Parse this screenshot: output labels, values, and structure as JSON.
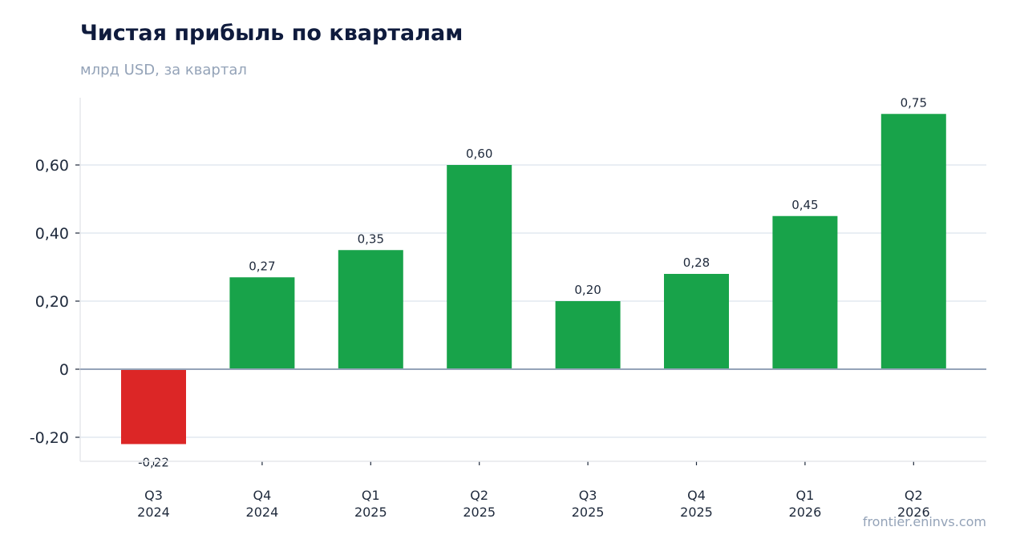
{
  "chart_data": {
    "type": "bar",
    "title": "Чистая прибыль по кварталам",
    "subtitle": "млрд USD, за квартал",
    "xlabel": "",
    "ylabel": "",
    "categories": [
      [
        "Q3",
        "2024"
      ],
      [
        "Q4",
        "2024"
      ],
      [
        "Q1",
        "2025"
      ],
      [
        "Q2",
        "2025"
      ],
      [
        "Q3",
        "2025"
      ],
      [
        "Q4",
        "2025"
      ],
      [
        "Q1",
        "2026"
      ],
      [
        "Q2",
        "2026"
      ]
    ],
    "values": [
      -0.22,
      0.27,
      0.35,
      0.6,
      0.2,
      0.28,
      0.45,
      0.75
    ],
    "data_labels": [
      "-0,22",
      "0,27",
      "0,35",
      "0,60",
      "0,20",
      "0,28",
      "0,45",
      "0,75"
    ],
    "yticks": [
      -0.2,
      0,
      0.2,
      0.4,
      0.6
    ],
    "ytick_labels": [
      "-0,20",
      "0",
      "0,20",
      "0,40",
      "0,60"
    ],
    "ylim": [
      -0.27,
      0.8
    ],
    "grid": true,
    "colors": {
      "positive": "#18a34a",
      "negative": "#dc2626",
      "grid": "#e2e8f0",
      "zero_line": "#94a3b8"
    }
  },
  "source": "frontier.eninvs.com"
}
